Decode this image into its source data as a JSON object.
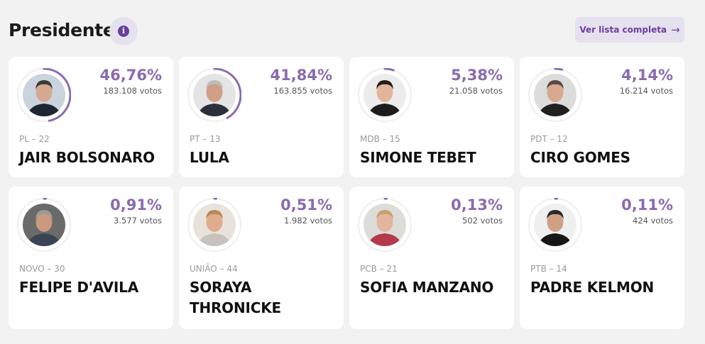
{
  "section": {
    "title": "Presidente",
    "info_icon": "info-icon",
    "view_all_label": "Ver lista completa",
    "view_all_icon": "arrow-right-icon"
  },
  "colors": {
    "accent": "#8a6ab0",
    "ring_track": "#eeeeee",
    "button_bg": "#e6e1ee"
  },
  "candidates": [
    {
      "pct": "46,76%",
      "share": 0.4676,
      "votes": "183.108 votos",
      "party": "PL – 22",
      "name": "JAIR BOLSONARO",
      "photo_bg": "#c9d4de",
      "skin": "#d7a890",
      "hair": "#3a3a3a",
      "suit": "#1f2633"
    },
    {
      "pct": "41,84%",
      "share": 0.4184,
      "votes": "163.855 votos",
      "party": "PT – 13",
      "name": "LULA",
      "photo_bg": "#e4e4e4",
      "skin": "#cf9f86",
      "hair": "#bdbdbd",
      "suit": "#2a2f3a"
    },
    {
      "pct": "5,38%",
      "share": 0.0538,
      "votes": "21.058 votos",
      "party": "MDB – 15",
      "name": "SIMONE TEBET",
      "photo_bg": "#ececec",
      "skin": "#e2b59a",
      "hair": "#2a1c16",
      "suit": "#1d1d1d"
    },
    {
      "pct": "4,14%",
      "share": 0.0414,
      "votes": "16.214 votos",
      "party": "PDT – 12",
      "name": "CIRO GOMES",
      "photo_bg": "#dcdcdc",
      "skin": "#d9a88e",
      "hair": "#5a4a40",
      "suit": "#202020"
    },
    {
      "pct": "0,91%",
      "share": 0.0091,
      "votes": "3.577 votos",
      "party": "NOVO – 30",
      "name": "FELIPE D'AVILA",
      "photo_bg": "#6a6a6a",
      "skin": "#c99a80",
      "hair": "#9a9a9a",
      "suit": "#3a4456"
    },
    {
      "pct": "0,51%",
      "share": 0.0051,
      "votes": "1.982 votos",
      "party": "UNIÃO – 44",
      "name": "SORAYA THRONICKE",
      "photo_bg": "#e8e2dc",
      "skin": "#e0ac8e",
      "hair": "#b58a55",
      "suit": "#c9c1bb"
    },
    {
      "pct": "0,13%",
      "share": 0.0013,
      "votes": "502 votos",
      "party": "PCB – 21",
      "name": "SOFIA MANZANO",
      "photo_bg": "#dcdcd8",
      "skin": "#e3b59d",
      "hair": "#c8a070",
      "suit": "#b33a4a"
    },
    {
      "pct": "0,11%",
      "share": 0.0011,
      "votes": "424 votos",
      "party": "PTB – 14",
      "name": "PADRE KELMON",
      "photo_bg": "#efefef",
      "skin": "#cfa084",
      "hair": "#2a2a2a",
      "suit": "#161616"
    }
  ]
}
